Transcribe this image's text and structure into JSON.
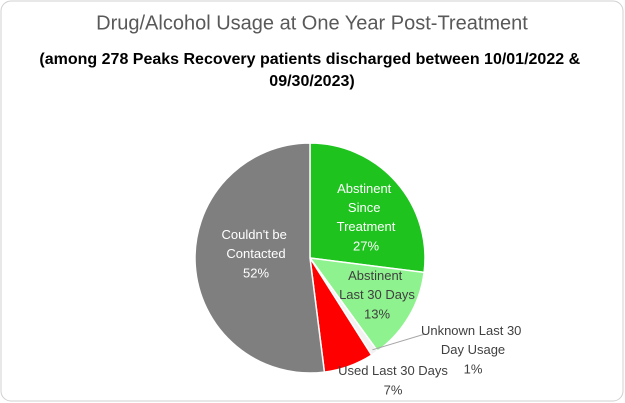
{
  "chart_data": {
    "type": "pie",
    "title": "Drug/Alcohol Usage at One Year Post-Treatment",
    "subtitle": "(among 278 Peaks Recovery patients discharged between 10/01/2022 & 09/30/2023)",
    "categories": [
      "Abstinent Since Treatment",
      "Abstinent Last 30 Days",
      "Unknown Last 30 Day Usage",
      "Used Last 30 Days",
      "Couldn't be Contacted"
    ],
    "values": [
      27,
      13,
      1,
      7,
      52
    ],
    "value_labels": [
      "27%",
      "13%",
      "1%",
      "7%",
      "52%"
    ],
    "colors": [
      "#1ec31e",
      "#8ef28e",
      "#f2f2f2",
      "#ff0000",
      "#7f7f7f"
    ]
  }
}
